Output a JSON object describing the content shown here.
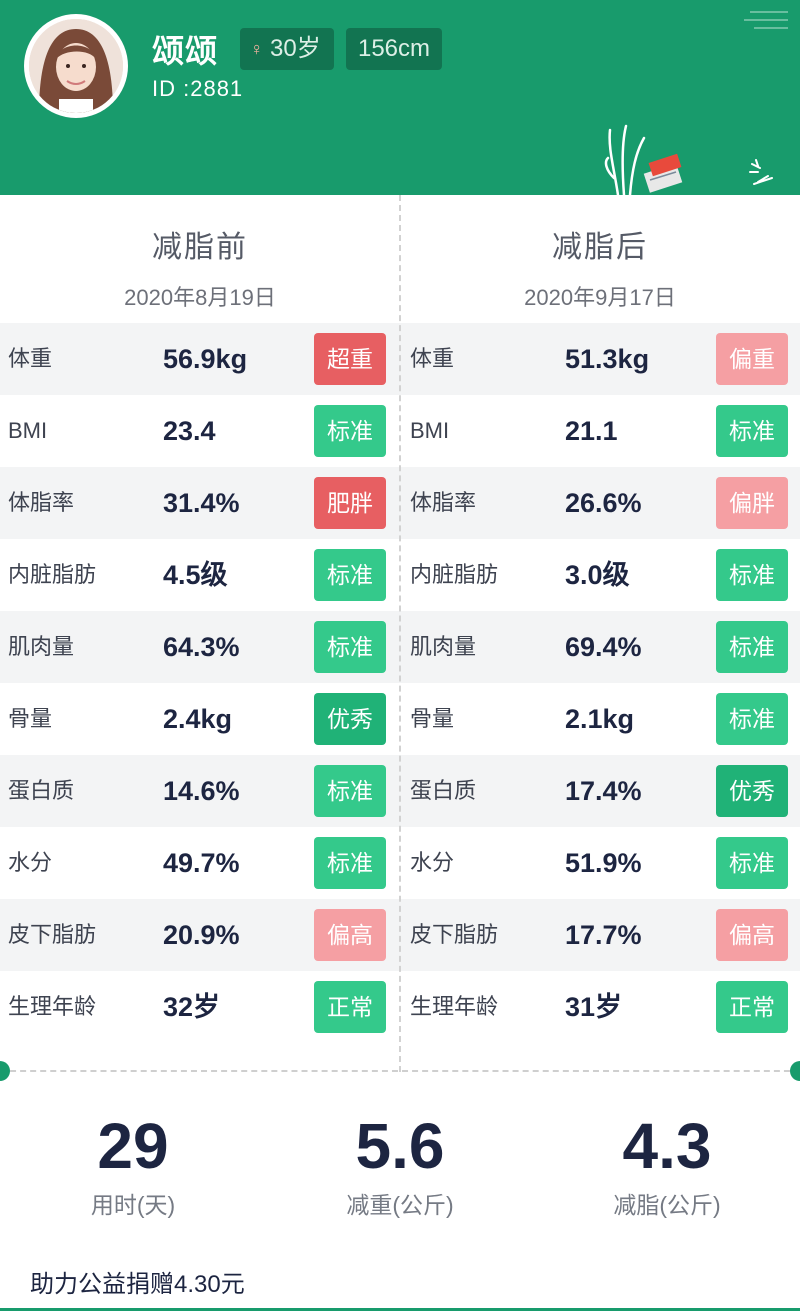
{
  "user": {
    "name": "颂颂",
    "age": "30岁",
    "height": "156cm",
    "id": "ID :2881"
  },
  "before": {
    "title": "减脂前",
    "date": "2020年8月19日"
  },
  "after": {
    "title": "减脂后",
    "date": "2020年9月17日"
  },
  "rows": [
    {
      "label": "体重",
      "before": {
        "value": "56.9kg",
        "status": "超重",
        "level": "red"
      },
      "after": {
        "value": "51.3kg",
        "status": "偏重",
        "level": "pink"
      }
    },
    {
      "label": "BMI",
      "before": {
        "value": "23.4",
        "status": "标准",
        "level": "green"
      },
      "after": {
        "value": "21.1",
        "status": "标准",
        "level": "green"
      }
    },
    {
      "label": "体脂率",
      "before": {
        "value": "31.4%",
        "status": "肥胖",
        "level": "red"
      },
      "after": {
        "value": "26.6%",
        "status": "偏胖",
        "level": "pink"
      }
    },
    {
      "label": "内脏脂肪",
      "before": {
        "value": "4.5级",
        "status": "标准",
        "level": "green"
      },
      "after": {
        "value": "3.0级",
        "status": "标准",
        "level": "green"
      }
    },
    {
      "label": "肌肉量",
      "before": {
        "value": "64.3%",
        "status": "标准",
        "level": "green"
      },
      "after": {
        "value": "69.4%",
        "status": "标准",
        "level": "green"
      }
    },
    {
      "label": "骨量",
      "before": {
        "value": "2.4kg",
        "status": "优秀",
        "level": "dark"
      },
      "after": {
        "value": "2.1kg",
        "status": "标准",
        "level": "green"
      }
    },
    {
      "label": "蛋白质",
      "before": {
        "value": "14.6%",
        "status": "标准",
        "level": "green"
      },
      "after": {
        "value": "17.4%",
        "status": "优秀",
        "level": "dark"
      }
    },
    {
      "label": "水分",
      "before": {
        "value": "49.7%",
        "status": "标准",
        "level": "green"
      },
      "after": {
        "value": "51.9%",
        "status": "标准",
        "level": "green"
      }
    },
    {
      "label": "皮下脂肪",
      "before": {
        "value": "20.9%",
        "status": "偏高",
        "level": "pink"
      },
      "after": {
        "value": "17.7%",
        "status": "偏高",
        "level": "pink"
      }
    },
    {
      "label": "生理年龄",
      "before": {
        "value": "32岁",
        "status": "正常",
        "level": "green"
      },
      "after": {
        "value": "31岁",
        "status": "正常",
        "level": "green"
      }
    }
  ],
  "summary": [
    {
      "value": "29",
      "label": "用时(天)"
    },
    {
      "value": "5.6",
      "label": "减重(公斤)"
    },
    {
      "value": "4.3",
      "label": "减脂(公斤)"
    }
  ],
  "donation": "助力公益捐赠4.30元",
  "colors": {
    "header": "#189b6c",
    "status_green": "#34c98b",
    "status_dark_green": "#20b277",
    "status_red": "#e75f62",
    "status_pink": "#f59fa3"
  },
  "icons": {
    "gender": "female-icon"
  }
}
